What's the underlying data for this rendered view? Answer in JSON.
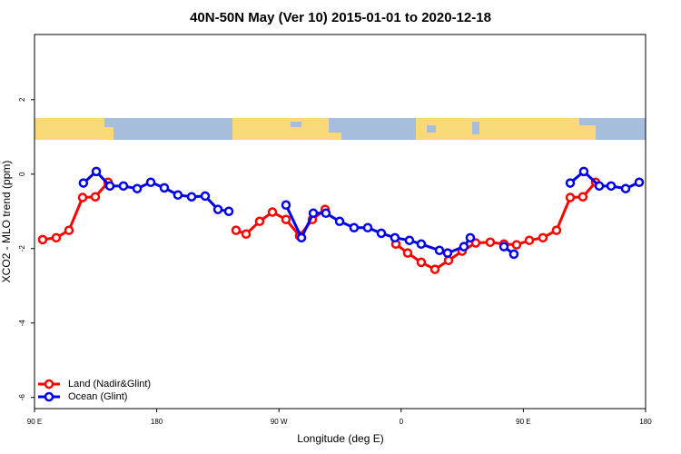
{
  "chart_data": {
    "type": "line",
    "title": "40N-50N May (Ver 10)   2015-01-01 to 2020-12-18",
    "xlabel": "Longitude (deg E)",
    "ylabel": "XCO2 - MLO trend (ppm)",
    "xlim": [
      90,
      540
    ],
    "ylim": [
      -6.3,
      3.75
    ],
    "xticks": [
      {
        "value": 90,
        "label": "90 E"
      },
      180,
      {
        "value": 270,
        "label": "90 W"
      },
      {
        "value": 360,
        "label": "0"
      },
      {
        "value": 450,
        "label": "90 E"
      },
      {
        "value": 540,
        "label": "180"
      }
    ],
    "yticks": [
      2,
      0,
      -2,
      -4,
      -6
    ],
    "legend": "lower left",
    "series": [
      {
        "name": "Land (Nadir&Glint)",
        "color": "#ff0000",
        "x": [
          96,
          106,
          115.4,
          125.4,
          134.8,
          144.2,
          null,
          238.4,
          245.8,
          255.8,
          265.2,
          275.2,
          285.2,
          294.6,
          304,
          null,
          356.1,
          364.8,
          374.8,
          384.9,
          394.9,
          404.9,
          414.9,
          425.6,
          435.7,
          445,
          454.4,
          464.4,
          474.4,
          484.5,
          493.8,
          503.2
        ],
        "values": [
          -1.76,
          -1.71,
          -1.51,
          -0.63,
          -0.61,
          -0.22,
          null,
          -1.51,
          -1.61,
          -1.27,
          -1.02,
          -1.22,
          -1.66,
          -1.22,
          -0.95,
          null,
          -1.88,
          -2.12,
          -2.37,
          -2.56,
          -2.32,
          -2.07,
          -1.85,
          -1.83,
          -1.88,
          -1.9,
          -1.78,
          -1.71,
          -1.51,
          -0.63,
          -0.61,
          -0.22
        ]
      },
      {
        "name": "Ocean (Glint)",
        "color": "#0000ee",
        "x": [
          126,
          135.5,
          145.5,
          155.5,
          165.6,
          175.6,
          185.6,
          195.6,
          205.7,
          215.7,
          225.1,
          233.1,
          null,
          275.2,
          286.6,
          295.3,
          304.6,
          314.7,
          325.3,
          335.4,
          345.4,
          355.4,
          366.1,
          374.8,
          388.2,
          394.2,
          406.2,
          410.9,
          null,
          435.7,
          443,
          null,
          484.5,
          494.5,
          505.9,
          514.6,
          525.3,
          535.3
        ],
        "values": [
          -0.24,
          0.07,
          -0.32,
          -0.32,
          -0.39,
          -0.22,
          -0.37,
          -0.56,
          -0.61,
          -0.59,
          -0.95,
          -1.0,
          null,
          -0.83,
          -1.71,
          -1.05,
          -1.05,
          -1.27,
          -1.44,
          -1.44,
          -1.59,
          -1.71,
          -1.78,
          -1.88,
          -2.05,
          -2.12,
          -1.95,
          -1.71,
          null,
          -1.95,
          -2.15,
          null,
          -0.24,
          0.07,
          -0.32,
          -0.32,
          -0.39,
          -0.22
        ]
      }
    ]
  }
}
